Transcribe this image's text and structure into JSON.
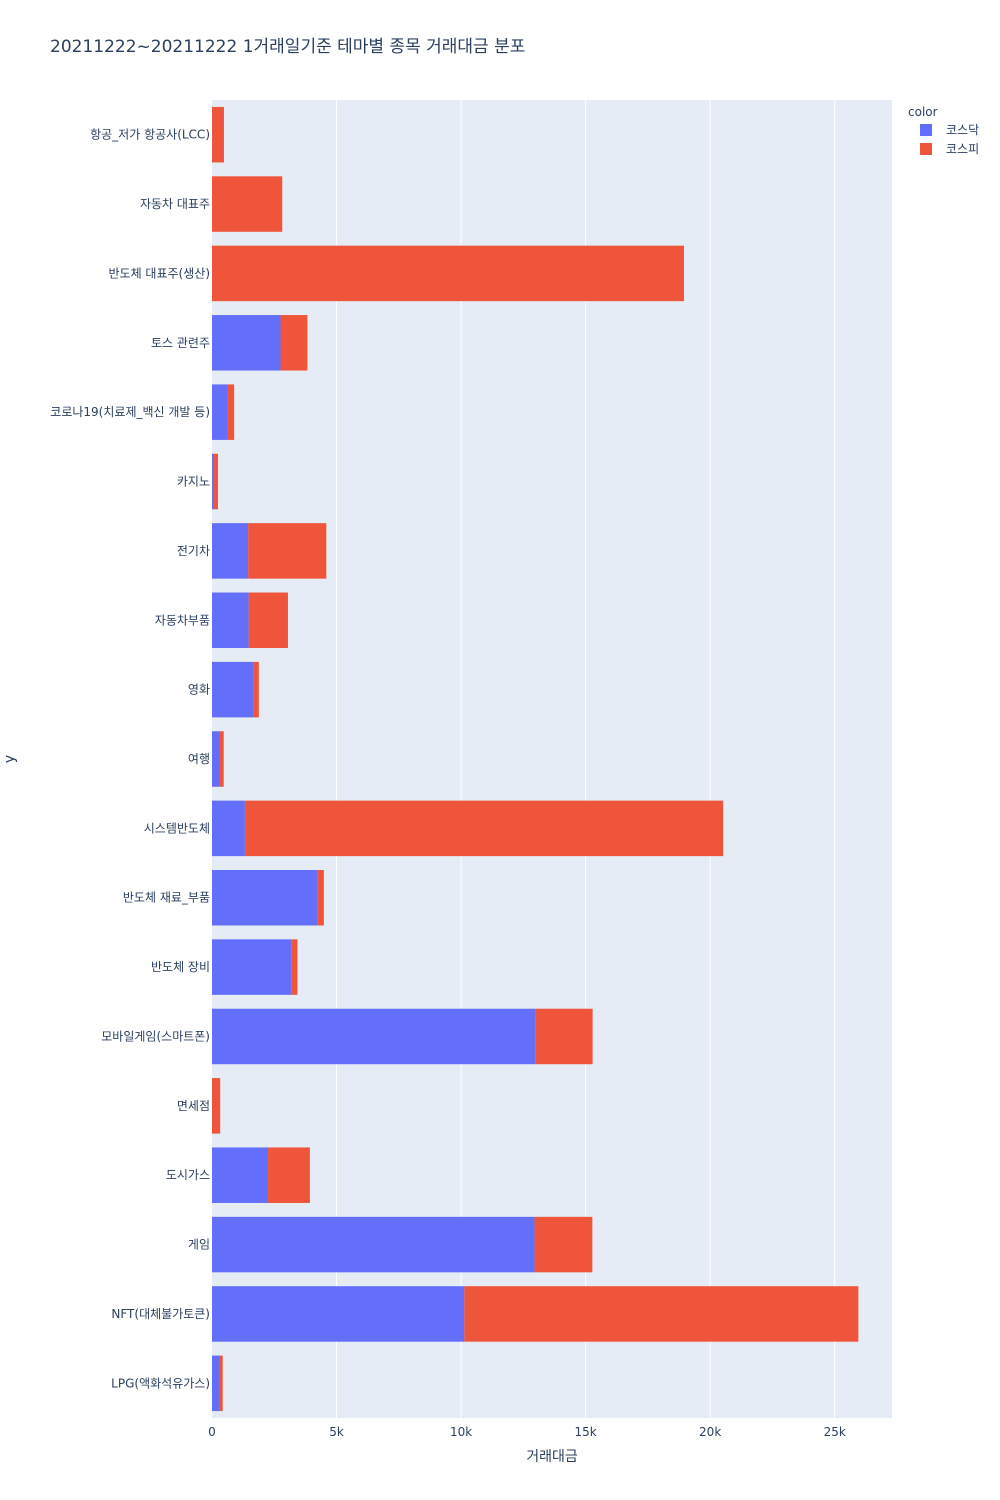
{
  "chart_data": {
    "type": "bar",
    "orientation": "horizontal",
    "barmode": "stack",
    "title": "20211222~20211222 1거래일기준 테마별 종목 거래대금 분포",
    "xlabel": "거래대금",
    "ylabel": "y",
    "xlim": [
      0,
      27300
    ],
    "xticks": [
      0,
      5000,
      10000,
      15000,
      20000,
      25000
    ],
    "xtick_labels": [
      "0",
      "5k",
      "10k",
      "15k",
      "20k",
      "25k"
    ],
    "grid": true,
    "legend_title": "color",
    "legend_position": "top-right",
    "categories": [
      "항공_저가 항공사(LCC)",
      "자동차 대표주",
      "반도체 대표주(생산)",
      "토스 관련주",
      "코로나19(치료제_백신 개발 등)",
      "카지노",
      "전기차",
      "자동차부품",
      "영화",
      "여행",
      "시스템반도체",
      "반도체 재료_부품",
      "반도체 장비",
      "모바일게임(스마트폰)",
      "면세점",
      "도시가스",
      "게임",
      "NFT(대체불가토큰)",
      "LPG(액화석유가스)"
    ],
    "series": [
      {
        "name": "코스닥",
        "color": "#636efa",
        "values": [
          0,
          0,
          0,
          2750,
          620,
          60,
          1450,
          1470,
          1680,
          300,
          1320,
          4220,
          3180,
          13000,
          0,
          2250,
          12950,
          10130,
          280
        ]
      },
      {
        "name": "코스피",
        "color": "#ef553b",
        "values": [
          480,
          2820,
          18950,
          1080,
          270,
          180,
          3140,
          1580,
          200,
          170,
          19200,
          270,
          250,
          2280,
          330,
          1680,
          2320,
          15820,
          150
        ]
      }
    ]
  }
}
